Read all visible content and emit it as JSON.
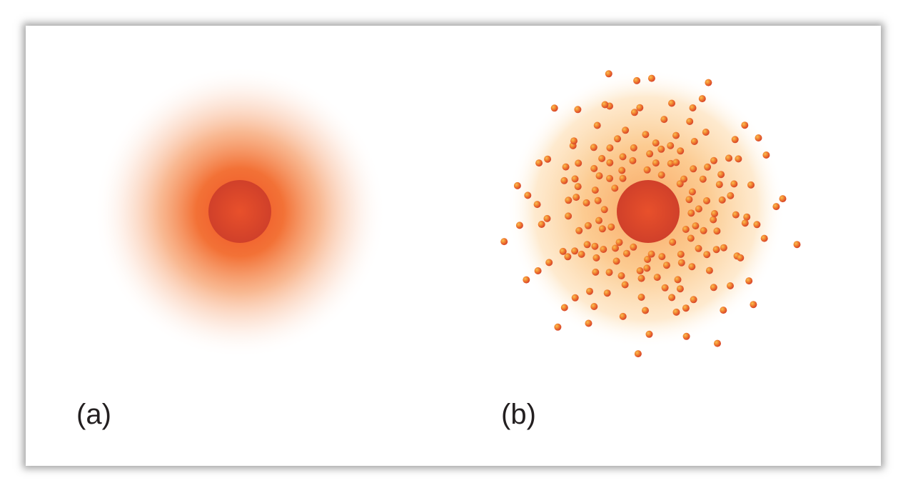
{
  "panels": [
    {
      "id": "a",
      "label": "(a)"
    },
    {
      "id": "b",
      "label": "(b)"
    }
  ],
  "colors": {
    "nucleus": "#d9452a",
    "cloud_a_core": "#f0582a",
    "cloud_b_halo": "#fbc480",
    "electron": "#e8562a",
    "electron_highlight": "#f8b24a",
    "label_text": "#231f20"
  }
}
